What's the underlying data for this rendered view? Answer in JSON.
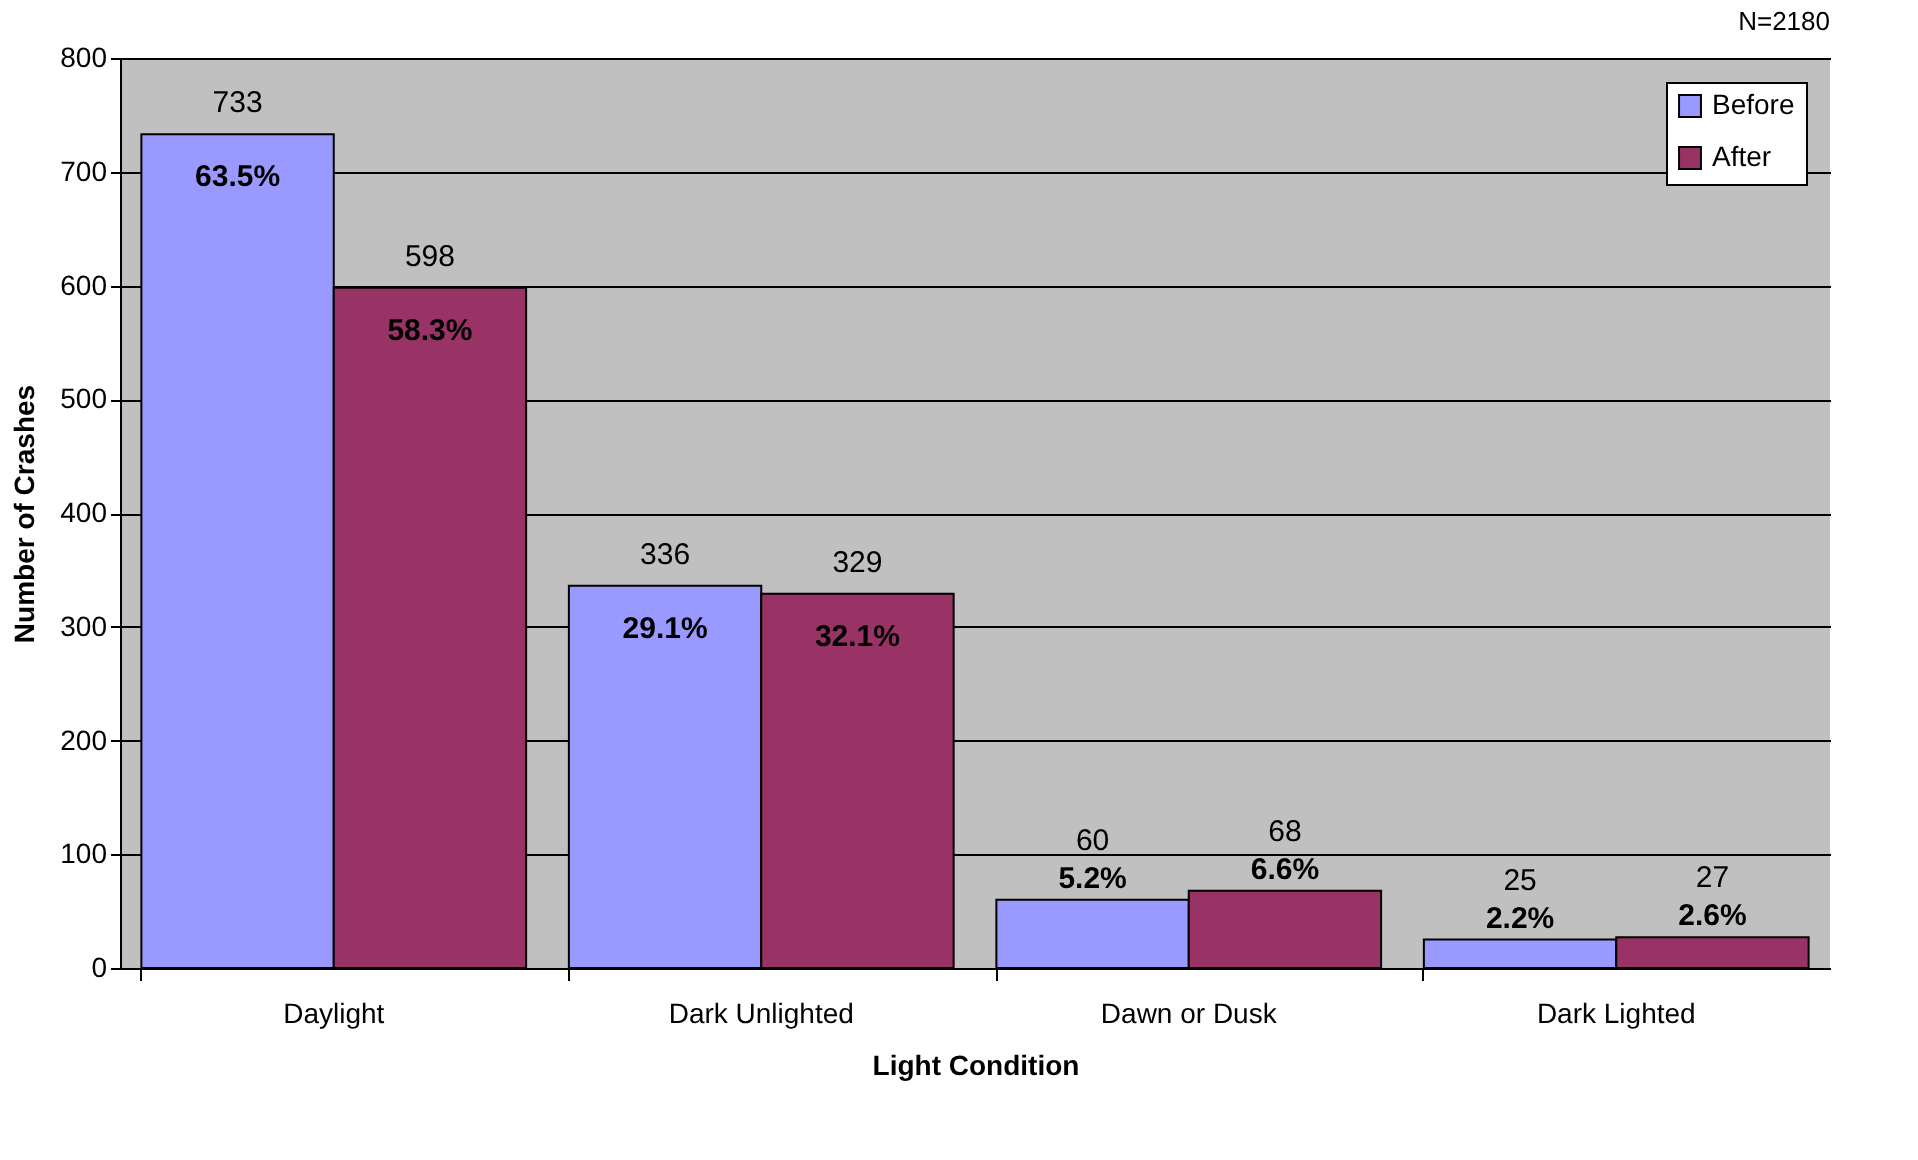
{
  "chart_data": {
    "type": "bar",
    "xlabel": "Light Condition",
    "ylabel": "Number of Crashes",
    "categories": [
      "Daylight",
      "Dark Unlighted",
      "Dawn or Dusk",
      "Dark Lighted"
    ],
    "series": [
      {
        "name": "Before",
        "color": "#9999ff",
        "values": [
          733,
          336,
          60,
          25
        ]
      },
      {
        "name": "After",
        "color": "#993366",
        "values": [
          598,
          329,
          68,
          27
        ]
      }
    ],
    "ylim": [
      0,
      800
    ],
    "yticks": [
      0,
      100,
      200,
      300,
      400,
      500,
      600,
      700,
      800
    ],
    "grid": "y",
    "legend": "top right",
    "data_labels": true,
    "annotations": [
      "N=2180",
      {
        "text": "63.5%",
        "x": "Daylight",
        "y": 733
      },
      {
        "text": "58.3%",
        "x": "Daylight",
        "y": 598
      },
      {
        "text": "29.1%",
        "x": "Dark Unlighted",
        "y": 336
      },
      {
        "text": "32.1%",
        "x": "Dark Unlighted",
        "y": 329
      },
      {
        "text": "5.2%",
        "x": "Dawn or Dusk",
        "y": 60
      },
      {
        "text": "6.6%",
        "x": "Dawn or Dusk",
        "y": 68
      },
      {
        "text": "2.2%",
        "x": "Dark Lighted",
        "y": 25
      },
      {
        "text": "2.6%",
        "x": "Dark Lighted",
        "y": 27
      }
    ]
  }
}
